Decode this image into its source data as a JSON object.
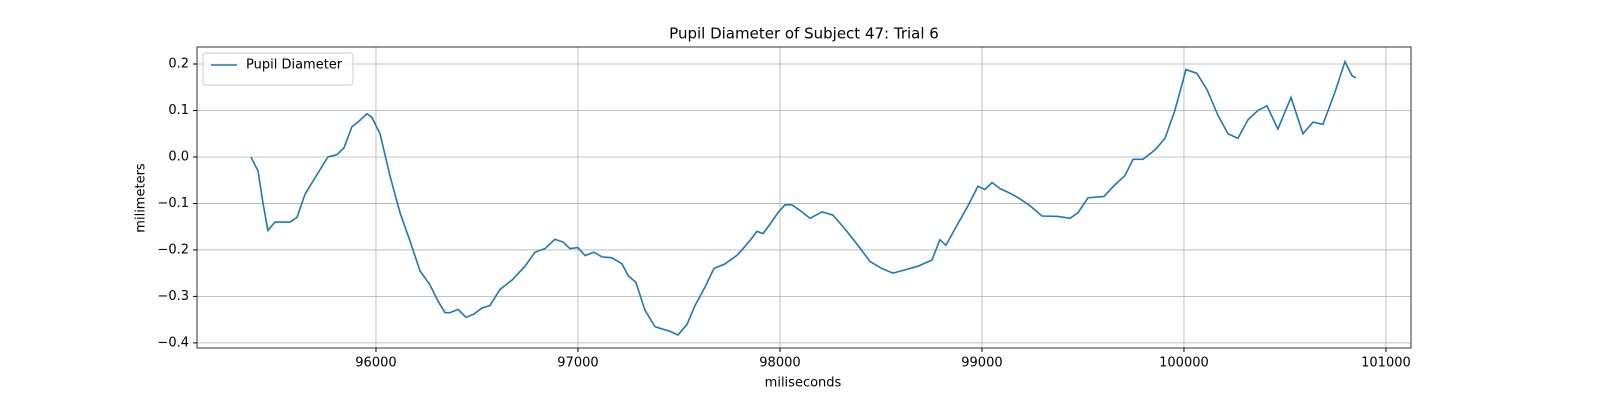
{
  "chart_data": {
    "type": "line",
    "title": "Pupil Diameter of Subject 47: Trial 6",
    "xlabel": "miliseconds",
    "ylabel": "milimeters",
    "legend": "upper left",
    "grid": true,
    "x": [
      95381,
      95416,
      95441,
      95465,
      95500,
      95574,
      95609,
      95649,
      95698,
      95762,
      95807,
      95842,
      95881,
      95911,
      95955,
      95980,
      96020,
      96069,
      96119,
      96168,
      96218,
      96267,
      96307,
      96342,
      96366,
      96406,
      96446,
      96485,
      96525,
      96564,
      96614,
      96673,
      96738,
      96787,
      96837,
      96886,
      96926,
      96960,
      97000,
      97035,
      97079,
      97119,
      97168,
      97218,
      97248,
      97287,
      97332,
      97381,
      97416,
      97455,
      97495,
      97540,
      97579,
      97629,
      97673,
      97728,
      97792,
      97851,
      97886,
      97916,
      97950,
      97990,
      98025,
      98059,
      98099,
      98149,
      98208,
      98262,
      98322,
      98386,
      98446,
      98505,
      98559,
      98619,
      98683,
      98752,
      98792,
      98822,
      98866,
      98931,
      98980,
      99015,
      99050,
      99089,
      99139,
      99188,
      99238,
      99297,
      99376,
      99436,
      99475,
      99525,
      99604,
      99658,
      99708,
      99748,
      99797,
      99856,
      99906,
      99955,
      100010,
      100064,
      100114,
      100168,
      100218,
      100267,
      100317,
      100366,
      100411,
      100465,
      100530,
      100589,
      100639,
      100688,
      100748,
      100797,
      100832,
      100851
    ],
    "series": [
      {
        "name": "Pupil Diameter",
        "color": "#1f77b4",
        "values": [
          0.0,
          -0.03,
          -0.1,
          -0.158,
          -0.14,
          -0.14,
          -0.13,
          -0.08,
          -0.045,
          0.0,
          0.005,
          0.02,
          0.065,
          0.075,
          0.093,
          0.085,
          0.05,
          -0.04,
          -0.12,
          -0.18,
          -0.245,
          -0.275,
          -0.31,
          -0.335,
          -0.335,
          -0.328,
          -0.345,
          -0.338,
          -0.325,
          -0.32,
          -0.285,
          -0.265,
          -0.235,
          -0.205,
          -0.197,
          -0.177,
          -0.183,
          -0.197,
          -0.195,
          -0.212,
          -0.205,
          -0.215,
          -0.217,
          -0.23,
          -0.255,
          -0.27,
          -0.33,
          -0.365,
          -0.37,
          -0.375,
          -0.383,
          -0.36,
          -0.32,
          -0.28,
          -0.24,
          -0.23,
          -0.21,
          -0.18,
          -0.16,
          -0.165,
          -0.145,
          -0.12,
          -0.103,
          -0.103,
          -0.115,
          -0.132,
          -0.118,
          -0.125,
          -0.155,
          -0.19,
          -0.225,
          -0.24,
          -0.25,
          -0.243,
          -0.235,
          -0.222,
          -0.178,
          -0.19,
          -0.155,
          -0.105,
          -0.063,
          -0.07,
          -0.055,
          -0.068,
          -0.078,
          -0.09,
          -0.105,
          -0.127,
          -0.128,
          -0.132,
          -0.12,
          -0.088,
          -0.085,
          -0.06,
          -0.04,
          -0.005,
          -0.005,
          0.015,
          0.04,
          0.1,
          0.188,
          0.18,
          0.145,
          0.09,
          0.05,
          0.04,
          0.08,
          0.1,
          0.11,
          0.06,
          0.128,
          0.05,
          0.075,
          0.07,
          0.14,
          0.205,
          0.175,
          0.17
        ]
      }
    ],
    "xlim": [
      95114,
      101124
    ],
    "xticks": [
      96000,
      97000,
      98000,
      99000,
      100000,
      101000
    ],
    "ylim": [
      -0.411,
      0.2366
    ],
    "yticks": [
      {
        "value": -0.4,
        "label": "−0.4"
      },
      {
        "value": -0.3,
        "label": "−0.3"
      },
      {
        "value": -0.2,
        "label": "−0.2"
      },
      {
        "value": -0.1,
        "label": "−0.1"
      },
      {
        "value": 0,
        "label": "0.0"
      },
      {
        "value": 0.1,
        "label": "0.1"
      },
      {
        "value": 0.2,
        "label": "0.2"
      }
    ]
  }
}
